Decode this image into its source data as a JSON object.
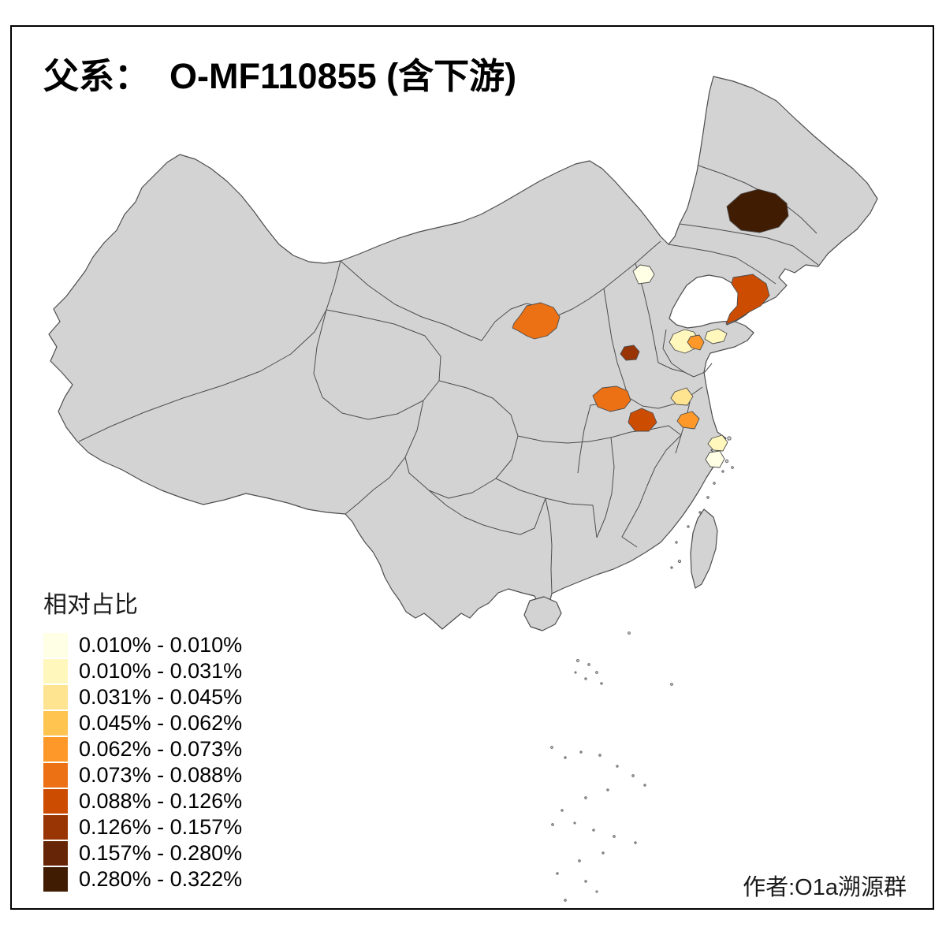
{
  "title": "父系：  O-MF110855 (含下游)",
  "attribution": "作者:O1a溯源群",
  "legend": {
    "title": "相对占比",
    "items": [
      {
        "label": "0.010% - 0.010%",
        "color": "#FFFFE5"
      },
      {
        "label": "0.010% - 0.031%",
        "color": "#FFF7BC"
      },
      {
        "label": "0.031% - 0.045%",
        "color": "#FEE391"
      },
      {
        "label": "0.045% - 0.062%",
        "color": "#FEC44F"
      },
      {
        "label": "0.062% - 0.073%",
        "color": "#FE9929"
      },
      {
        "label": "0.073% - 0.088%",
        "color": "#EC7014"
      },
      {
        "label": "0.088% - 0.126%",
        "color": "#CC4C02"
      },
      {
        "label": "0.126% - 0.157%",
        "color": "#993404"
      },
      {
        "label": "0.157% - 0.280%",
        "color": "#662506"
      },
      {
        "label": "0.280% - 0.322%",
        "color": "#401C02"
      }
    ]
  },
  "map": {
    "land_color": "#D3D3D3",
    "border_color": "#4D4D4D",
    "background": "#FFFFFF",
    "regions": [
      {
        "id": "heilongjiang-harbin",
        "legend_class": 10
      },
      {
        "id": "liaoning-south",
        "legend_class": 7
      },
      {
        "id": "beijing",
        "legend_class": 1
      },
      {
        "id": "ningxia-north",
        "legend_class": 6
      },
      {
        "id": "shanxi-south",
        "legend_class": 8
      },
      {
        "id": "shandong-west",
        "legend_class": 2
      },
      {
        "id": "shandong-central",
        "legend_class": 5
      },
      {
        "id": "shandong-peninsula",
        "legend_class": 2
      },
      {
        "id": "henan-southwest",
        "legend_class": 6
      },
      {
        "id": "henan-south",
        "legend_class": 7
      },
      {
        "id": "jiangsu-central",
        "legend_class": 3
      },
      {
        "id": "anhui-central",
        "legend_class": 5
      },
      {
        "id": "shanghai-area",
        "legend_class": 2
      },
      {
        "id": "zhejiang-north",
        "legend_class": 1
      }
    ]
  },
  "chart_data": {
    "type": "choropleth",
    "title": "父系：  O-MF110855 (含下游)",
    "legend_title": "相对占比",
    "unit": "%",
    "bins_percent": [
      "0.010 - 0.010",
      "0.010 - 0.031",
      "0.031 - 0.045",
      "0.045 - 0.062",
      "0.062 - 0.073",
      "0.073 - 0.088",
      "0.088 - 0.126",
      "0.126 - 0.157",
      "0.157 - 0.280",
      "0.280 - 0.322"
    ],
    "colored_regions": [
      {
        "id": "heilongjiang-harbin",
        "bin": "0.280% - 0.322%"
      },
      {
        "id": "liaoning-south",
        "bin": "0.088% - 0.126%"
      },
      {
        "id": "beijing",
        "bin": "0.010% - 0.010%"
      },
      {
        "id": "ningxia-north",
        "bin": "0.073% - 0.088%"
      },
      {
        "id": "shanxi-south",
        "bin": "0.126% - 0.157%"
      },
      {
        "id": "shandong-west",
        "bin": "0.010% - 0.031%"
      },
      {
        "id": "shandong-central",
        "bin": "0.062% - 0.073%"
      },
      {
        "id": "shandong-peninsula",
        "bin": "0.010% - 0.031%"
      },
      {
        "id": "henan-southwest",
        "bin": "0.073% - 0.088%"
      },
      {
        "id": "henan-south",
        "bin": "0.088% - 0.126%"
      },
      {
        "id": "jiangsu-central",
        "bin": "0.031% - 0.045%"
      },
      {
        "id": "anhui-central",
        "bin": "0.062% - 0.073%"
      },
      {
        "id": "shanghai-area",
        "bin": "0.010% - 0.031%"
      },
      {
        "id": "zhejiang-north",
        "bin": "0.010% - 0.010%"
      }
    ]
  }
}
